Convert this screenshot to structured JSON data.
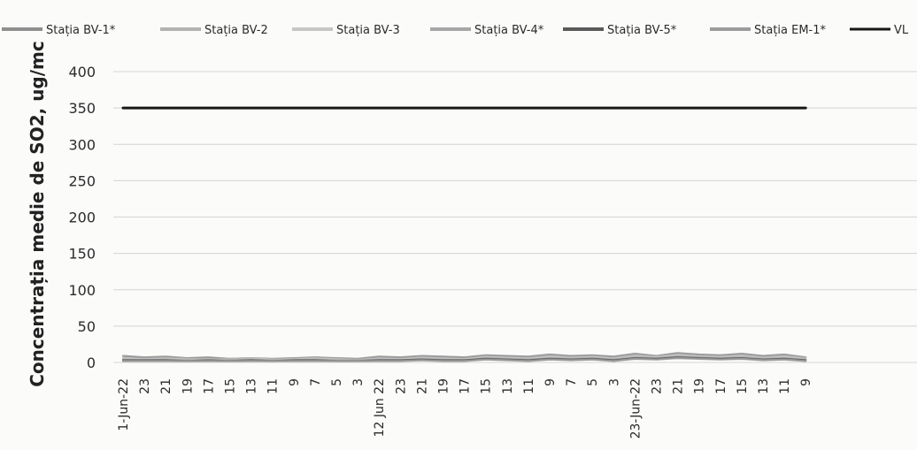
{
  "chart_data": {
    "type": "line",
    "title": "",
    "xlabel": "",
    "ylabel": "Concentrația medie de SO2, ug/mc",
    "ylim": [
      0,
      400
    ],
    "yticks": [
      0,
      50,
      100,
      150,
      200,
      250,
      300,
      350,
      400
    ],
    "grid": true,
    "legend_position": "top",
    "x_tick_labels": [
      "1-Jun-22",
      "23",
      "21",
      "19",
      "17",
      "15",
      "13",
      "11",
      "9",
      "7",
      "5",
      "3",
      "12 Jun 22",
      "23",
      "21",
      "19",
      "17",
      "15",
      "13",
      "11",
      "9",
      "7",
      "5",
      "3",
      "23-Jun-22",
      "23",
      "21",
      "19",
      "17",
      "15",
      "13",
      "11",
      "9"
    ],
    "series": [
      {
        "name": "Stația BV-1*",
        "color": "#8f8f8f",
        "style": "noisy",
        "values": [
          9,
          7,
          8,
          6,
          7,
          5,
          6,
          5,
          6,
          7,
          6,
          5,
          8,
          7,
          9,
          8,
          7,
          10,
          9,
          8,
          11,
          9,
          10,
          8,
          12,
          9,
          13,
          11,
          10,
          12,
          9,
          11,
          7
        ]
      },
      {
        "name": "Stația BV-2",
        "color": "#b2b2b2",
        "style": "noisy",
        "values": [
          6,
          5,
          6,
          5,
          4,
          5,
          6,
          4,
          5,
          6,
          5,
          4,
          6,
          5,
          7,
          6,
          5,
          8,
          7,
          6,
          9,
          7,
          8,
          6,
          10,
          8,
          11,
          9,
          8,
          10,
          7,
          9,
          6
        ]
      },
      {
        "name": "Stația BV-3",
        "color": "#c6c6c6",
        "style": "noisy",
        "values": [
          5,
          4,
          5,
          4,
          4,
          3,
          5,
          4,
          4,
          5,
          4,
          3,
          5,
          4,
          6,
          5,
          4,
          7,
          6,
          5,
          7,
          6,
          7,
          5,
          8,
          7,
          9,
          8,
          7,
          8,
          6,
          7,
          5
        ]
      },
      {
        "name": "Stația BV-4*",
        "color": "#a6a6a6",
        "style": "noisy",
        "values": [
          4,
          3,
          4,
          3,
          3,
          3,
          4,
          3,
          3,
          4,
          3,
          3,
          4,
          3,
          5,
          4,
          3,
          6,
          5,
          4,
          6,
          5,
          6,
          4,
          7,
          6,
          8,
          7,
          6,
          7,
          5,
          6,
          4
        ]
      },
      {
        "name": "Stația BV-5*",
        "color": "#5a5a5a",
        "style": "noisy",
        "values": [
          3,
          3,
          3,
          2,
          3,
          2,
          3,
          2,
          3,
          3,
          2,
          2,
          3,
          3,
          4,
          3,
          3,
          5,
          4,
          3,
          5,
          4,
          5,
          3,
          6,
          5,
          7,
          6,
          5,
          6,
          4,
          5,
          3
        ]
      },
      {
        "name": "Stația EM-1*",
        "color": "#9c9c9c",
        "style": "noisy",
        "values": [
          2,
          2,
          2,
          2,
          2,
          2,
          2,
          2,
          2,
          2,
          2,
          2,
          2,
          2,
          3,
          2,
          2,
          4,
          3,
          2,
          4,
          3,
          4,
          2,
          5,
          4,
          6,
          5,
          4,
          5,
          3,
          4,
          2
        ]
      },
      {
        "name": "VL",
        "color": "#161616",
        "style": "solid",
        "values": [
          350,
          350,
          350,
          350,
          350,
          350,
          350,
          350,
          350,
          350,
          350,
          350,
          350,
          350,
          350,
          350,
          350,
          350,
          350,
          350,
          350,
          350,
          350,
          350,
          350,
          350,
          350,
          350,
          350,
          350,
          350,
          350,
          350
        ]
      }
    ]
  }
}
